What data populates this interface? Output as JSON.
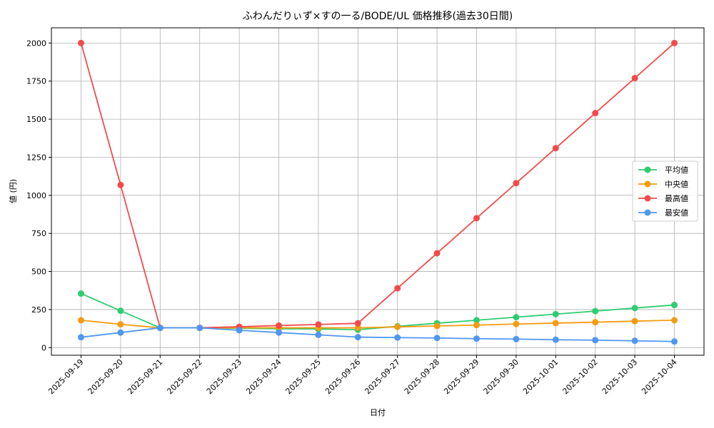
{
  "chart_data": {
    "type": "line",
    "title": "ふわんだりぃず×すの一る/BODE/UL 価格推移(過去30日間)",
    "xlabel": "日付",
    "ylabel": "値 (円)",
    "ylim": [
      -50,
      2100
    ],
    "yticks": [
      0,
      250,
      500,
      750,
      1000,
      1250,
      1500,
      1750,
      2000
    ],
    "grid": true,
    "legend_position": "center-right",
    "categories": [
      "2025-09-19",
      "2025-09-20",
      "2025-09-21",
      "2025-09-22",
      "2025-09-23",
      "2025-09-24",
      "2025-09-25",
      "2025-09-26",
      "2025-09-27",
      "2025-09-28",
      "2025-09-29",
      "2025-09-30",
      "2025-10-01",
      "2025-10-02",
      "2025-10-03",
      "2025-10-04"
    ],
    "series": [
      {
        "name": "平均値",
        "color": "#2ecc71",
        "values": [
          355,
          242,
          130,
          130,
          127,
          124,
          122,
          118,
          140,
          160,
          180,
          200,
          220,
          240,
          260,
          280
        ]
      },
      {
        "name": "中央値",
        "color": "#f39c12",
        "values": [
          180,
          153,
          130,
          130,
          130,
          130,
          130,
          130,
          136,
          142,
          148,
          155,
          161,
          167,
          174,
          180
        ]
      },
      {
        "name": "最高値",
        "color": "#f24b4b",
        "values": [
          2000,
          1068,
          130,
          130,
          137,
          145,
          152,
          160,
          390,
          620,
          850,
          1080,
          1310,
          1540,
          1770,
          2000
        ]
      },
      {
        "name": "最安値",
        "color": "#4f97f0",
        "values": [
          68,
          99,
          130,
          130,
          114,
          99,
          84,
          69,
          66,
          63,
          59,
          56,
          52,
          49,
          45,
          40
        ]
      }
    ]
  }
}
